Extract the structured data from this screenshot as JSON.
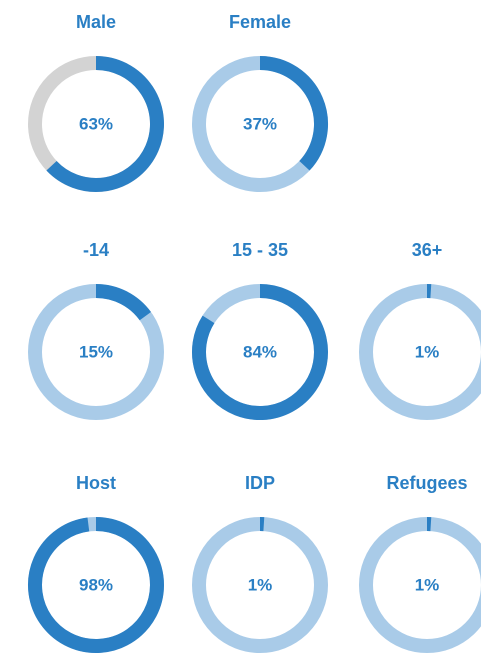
{
  "chart_data": [
    {
      "type": "donut",
      "title": "Male",
      "values": [
        63
      ],
      "value_labels": [
        "63%"
      ],
      "color": "#2a7fc4",
      "track_color": "#d3d3d3"
    },
    {
      "type": "donut",
      "title": "Female",
      "values": [
        37
      ],
      "value_labels": [
        "37%"
      ],
      "color": "#2a7fc4",
      "track_color": "#a9cbe8"
    },
    {
      "type": "donut",
      "title": "-14",
      "values": [
        15
      ],
      "value_labels": [
        "15%"
      ],
      "color": "#2a7fc4",
      "track_color": "#a9cbe8"
    },
    {
      "type": "donut",
      "title": "15 - 35",
      "values": [
        84
      ],
      "value_labels": [
        "84%"
      ],
      "color": "#2a7fc4",
      "track_color": "#a9cbe8"
    },
    {
      "type": "donut",
      "title": "36+",
      "values": [
        1
      ],
      "value_labels": [
        "1%"
      ],
      "color": "#2a7fc4",
      "track_color": "#a9cbe8"
    },
    {
      "type": "donut",
      "title": "Host",
      "values": [
        98
      ],
      "value_labels": [
        "98%"
      ],
      "color": "#2a7fc4",
      "track_color": "#a9cbe8"
    },
    {
      "type": "donut",
      "title": "IDP",
      "values": [
        1
      ],
      "value_labels": [
        "1%"
      ],
      "color": "#2a7fc4",
      "track_color": "#a9cbe8"
    },
    {
      "type": "donut",
      "title": "Refugees",
      "values": [
        1
      ],
      "value_labels": [
        "1%"
      ],
      "color": "#2a7fc4",
      "track_color": "#a9cbe8"
    }
  ]
}
